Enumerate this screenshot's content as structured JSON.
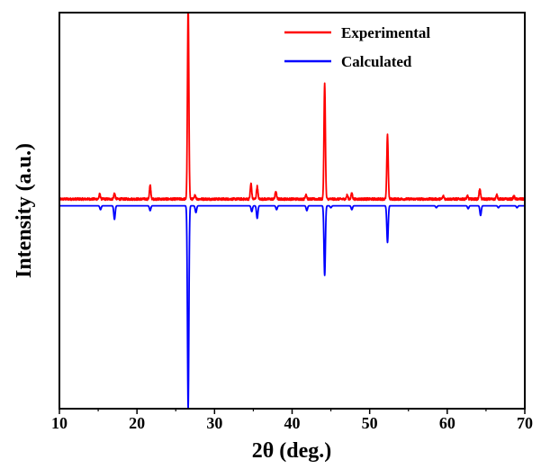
{
  "chart_data": {
    "type": "line",
    "title": "",
    "xlabel": "2θ (deg.)",
    "ylabel": "Intensity (a.u.)",
    "xlim": [
      10,
      70
    ],
    "x_ticks": [
      10,
      20,
      30,
      40,
      50,
      60,
      70
    ],
    "ylim": [
      -1.05,
      1.0
    ],
    "y_ticks_visible": false,
    "grid": false,
    "legend_position": "top-right",
    "series": [
      {
        "name": "Experimental",
        "color": "#ff0000",
        "baseline": 0.035,
        "noise": 0.006,
        "peaks": [
          {
            "x": 15.2,
            "height": 0.025
          },
          {
            "x": 17.1,
            "height": 0.03
          },
          {
            "x": 21.7,
            "height": 0.07
          },
          {
            "x": 26.6,
            "height": 1.0
          },
          {
            "x": 27.5,
            "height": 0.02
          },
          {
            "x": 34.7,
            "height": 0.08
          },
          {
            "x": 35.5,
            "height": 0.065
          },
          {
            "x": 37.9,
            "height": 0.04
          },
          {
            "x": 41.8,
            "height": 0.025
          },
          {
            "x": 44.2,
            "height": 0.6
          },
          {
            "x": 47.1,
            "height": 0.02
          },
          {
            "x": 47.7,
            "height": 0.03
          },
          {
            "x": 52.3,
            "height": 0.33
          },
          {
            "x": 59.5,
            "height": 0.015
          },
          {
            "x": 62.6,
            "height": 0.015
          },
          {
            "x": 64.2,
            "height": 0.055
          },
          {
            "x": 66.4,
            "height": 0.02
          },
          {
            "x": 68.6,
            "height": 0.015
          }
        ]
      },
      {
        "name": "Calculated",
        "color": "#0000ff",
        "baseline": 0.0,
        "peaks": [
          {
            "x": 15.3,
            "height": -0.02
          },
          {
            "x": 17.1,
            "height": -0.07
          },
          {
            "x": 21.7,
            "height": -0.025
          },
          {
            "x": 26.6,
            "height": -1.05
          },
          {
            "x": 27.6,
            "height": -0.035
          },
          {
            "x": 34.8,
            "height": -0.03
          },
          {
            "x": 35.5,
            "height": -0.065
          },
          {
            "x": 38.0,
            "height": -0.02
          },
          {
            "x": 41.9,
            "height": -0.025
          },
          {
            "x": 44.2,
            "height": -0.36
          },
          {
            "x": 45.0,
            "height": -0.01
          },
          {
            "x": 47.7,
            "height": -0.02
          },
          {
            "x": 52.3,
            "height": -0.19
          },
          {
            "x": 58.6,
            "height": -0.01
          },
          {
            "x": 62.7,
            "height": -0.015
          },
          {
            "x": 64.3,
            "height": -0.05
          },
          {
            "x": 66.6,
            "height": -0.01
          },
          {
            "x": 69.0,
            "height": -0.01
          }
        ]
      }
    ]
  }
}
